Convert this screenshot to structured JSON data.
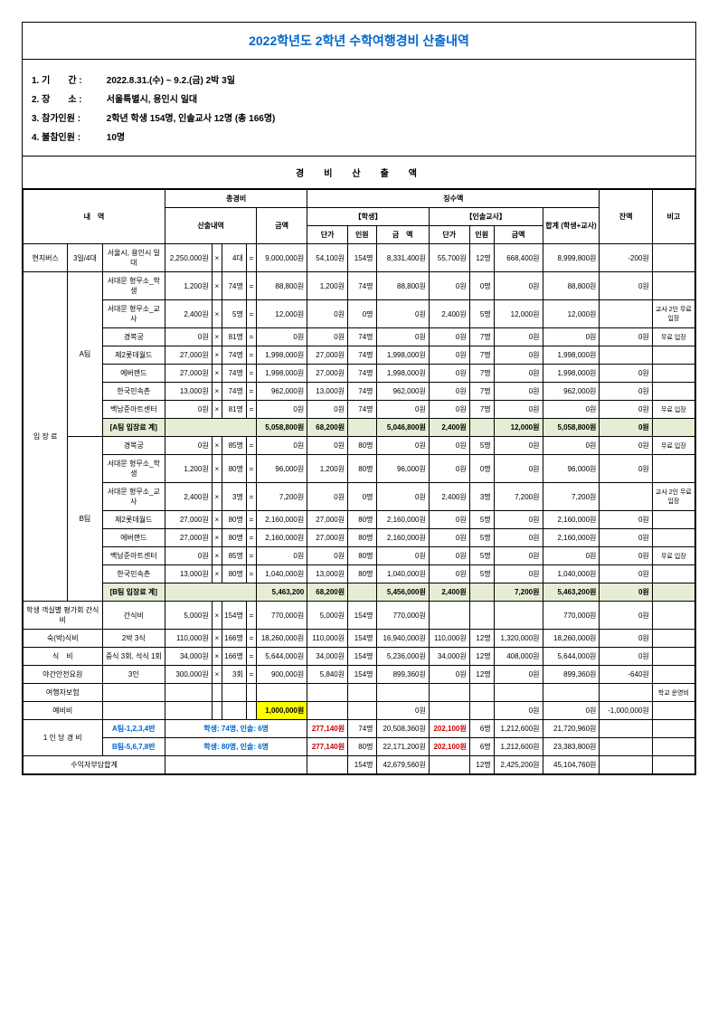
{
  "title": "2022학년도 2학년 수학여행경비 산출내역",
  "info": {
    "period_label": "1. 기　　간 :",
    "period": "2022.8.31.(수) ~ 9.2.(금) 2박 3일",
    "place_label": "2. 장　　소 :",
    "place": "서울특별시, 용인시 일대",
    "participants_label": "3. 참가인원 :",
    "participants": "2학년 학생 154명, 인솔교사 12명 (총 166명)",
    "absent_label": "4. 불참인원 :",
    "absent": "10명"
  },
  "section_heading": "경　비　산　출　액",
  "headers": {
    "item": "내　역",
    "total_cost": "총경비",
    "detail": "산출내역",
    "amount": "금액",
    "collection": "징수액",
    "student": "【학생】",
    "teacher": "【인솔교사】",
    "sum": "합계\n(학생+교사)",
    "unit_price": "단가",
    "count": "인원",
    "money": "금　액",
    "amt2": "금액",
    "balance": "잔액",
    "note": "비고"
  },
  "rows": [
    {
      "c1": "현지버스",
      "c2": "3일/4대",
      "c3": "서울시, 용인시 일대",
      "u": "2,250,000원",
      "x": "×",
      "q": "4대",
      "eq": "=",
      "amt": "9,000,000원",
      "sp": "54,100원",
      "sc": "154명",
      "sa": "8,331,400원",
      "tp": "55,700원",
      "tc": "12명",
      "ta": "668,400원",
      "tot": "8,999,800원",
      "bal": "-200원",
      "note": ""
    },
    {
      "c3": "서대문 형무소_학생",
      "u": "1,200원",
      "x": "×",
      "q": "74명",
      "eq": "=",
      "amt": "88,800원",
      "sp": "1,200원",
      "sc": "74명",
      "sa": "88,800원",
      "tp": "0원",
      "tc": "0명",
      "ta": "0원",
      "tot": "88,800원",
      "bal": "0원",
      "note": ""
    },
    {
      "c3": "서대문 형무소_교사",
      "u": "2,400원",
      "x": "×",
      "q": "5명",
      "eq": "=",
      "amt": "12,000원",
      "sp": "0원",
      "sc": "0명",
      "sa": "0원",
      "tp": "2,400원",
      "tc": "5명",
      "ta": "12,000원",
      "tot": "12,000원",
      "bal": "",
      "note": "교사 2인 무료 입장"
    },
    {
      "c3": "경복궁",
      "u": "0원",
      "x": "×",
      "q": "81명",
      "eq": "=",
      "amt": "0원",
      "sp": "0원",
      "sc": "74명",
      "sa": "0원",
      "tp": "0원",
      "tc": "7명",
      "ta": "0원",
      "tot": "0원",
      "bal": "0원",
      "note": "무료 입장"
    },
    {
      "c3": "제2롯데월드",
      "u": "27,000원",
      "x": "×",
      "q": "74명",
      "eq": "=",
      "amt": "1,998,000원",
      "sp": "27,000원",
      "sc": "74명",
      "sa": "1,998,000원",
      "tp": "0원",
      "tc": "7명",
      "ta": "0원",
      "tot": "1,998,000원",
      "bal": "",
      "note": ""
    },
    {
      "c3": "에버랜드",
      "u": "27,000원",
      "x": "×",
      "q": "74명",
      "eq": "=",
      "amt": "1,998,000원",
      "sp": "27,000원",
      "sc": "74명",
      "sa": "1,998,000원",
      "tp": "0원",
      "tc": "7명",
      "ta": "0원",
      "tot": "1,998,000원",
      "bal": "0원",
      "note": ""
    },
    {
      "c3": "한국민속촌",
      "u": "13,000원",
      "x": "×",
      "q": "74명",
      "eq": "=",
      "amt": "962,000원",
      "sp": "13,000원",
      "sc": "74명",
      "sa": "962,000원",
      "tp": "0원",
      "tc": "7명",
      "ta": "0원",
      "tot": "962,000원",
      "bal": "0원",
      "note": ""
    },
    {
      "c3": "백남준아트센터",
      "u": "0원",
      "x": "×",
      "q": "81명",
      "eq": "=",
      "amt": "0원",
      "sp": "0원",
      "sc": "74명",
      "sa": "0원",
      "tp": "0원",
      "tc": "7명",
      "ta": "0원",
      "tot": "0원",
      "bal": "0원",
      "note": "무료 입장"
    },
    {
      "sub": true,
      "c3": "[A팀 입장료 계]",
      "amt": "5,058,800원",
      "sp": "68,200원",
      "sa": "5,046,800원",
      "tp": "2,400원",
      "ta": "12,000원",
      "tot": "5,058,800원",
      "bal": "0원"
    },
    {
      "c3": "경복궁",
      "u": "0원",
      "x": "×",
      "q": "85명",
      "eq": "=",
      "amt": "0원",
      "sp": "0원",
      "sc": "80명",
      "sa": "0원",
      "tp": "0원",
      "tc": "5명",
      "ta": "0원",
      "tot": "0원",
      "bal": "0원",
      "note": "무료 입장"
    },
    {
      "c3": "서대문 형무소_학생",
      "u": "1,200원",
      "x": "×",
      "q": "80명",
      "eq": "=",
      "amt": "96,000원",
      "sp": "1,200원",
      "sc": "80명",
      "sa": "96,000원",
      "tp": "0원",
      "tc": "0명",
      "ta": "0원",
      "tot": "96,000원",
      "bal": "0원",
      "note": ""
    },
    {
      "c3": "서대문 형무소_교사",
      "u": "2,400원",
      "x": "×",
      "q": "3명",
      "eq": "=",
      "amt": "7,200원",
      "sp": "0원",
      "sc": "0명",
      "sa": "0원",
      "tp": "2,400원",
      "tc": "3명",
      "ta": "7,200원",
      "tot": "7,200원",
      "bal": "",
      "note": "교사 2인 무료 입장"
    },
    {
      "c3": "제2롯데월드",
      "u": "27,000원",
      "x": "×",
      "q": "80명",
      "eq": "=",
      "amt": "2,160,000원",
      "sp": "27,000원",
      "sc": "80명",
      "sa": "2,160,000원",
      "tp": "0원",
      "tc": "5명",
      "ta": "0원",
      "tot": "2,160,000원",
      "bal": "0원",
      "note": ""
    },
    {
      "c3": "에버랜드",
      "u": "27,000원",
      "x": "×",
      "q": "80명",
      "eq": "=",
      "amt": "2,160,000원",
      "sp": "27,000원",
      "sc": "80명",
      "sa": "2,160,000원",
      "tp": "0원",
      "tc": "5명",
      "ta": "0원",
      "tot": "2,160,000원",
      "bal": "0원",
      "note": ""
    },
    {
      "c3": "백남준아트센터",
      "u": "0원",
      "x": "×",
      "q": "85명",
      "eq": "=",
      "amt": "0원",
      "sp": "0원",
      "sc": "80명",
      "sa": "0원",
      "tp": "0원",
      "tc": "5명",
      "ta": "0원",
      "tot": "0원",
      "bal": "0원",
      "note": "무료 입장"
    },
    {
      "c3": "한국민속촌",
      "u": "13,000원",
      "x": "×",
      "q": "80명",
      "eq": "=",
      "amt": "1,040,000원",
      "sp": "13,000원",
      "sc": "80명",
      "sa": "1,040,000원",
      "tp": "0원",
      "tc": "5명",
      "ta": "0원",
      "tot": "1,040,000원",
      "bal": "0원",
      "note": ""
    },
    {
      "sub": true,
      "c3": "[B팀 입장료 계]",
      "amt": "5,463,200",
      "sp": "68,200원",
      "sa": "5,456,000원",
      "tp": "2,400원",
      "ta": "7,200원",
      "tot": "5,463,200원",
      "bal": "0원"
    },
    {
      "c1": "학생 객실별 평가회 간식비",
      "c3": "간식비",
      "u": "5,000원",
      "x": "×",
      "q": "154명",
      "eq": "=",
      "amt": "770,000원",
      "sp": "5,000원",
      "sc": "154명",
      "sa": "770,000원",
      "tp": "",
      "tc": "",
      "ta": "",
      "tot": "770,000원",
      "bal": "0원",
      "note": ""
    },
    {
      "c1": "숙(박)식비",
      "c3": "2박 3식",
      "u": "110,000원",
      "x": "×",
      "q": "166명",
      "eq": "=",
      "amt": "18,260,000원",
      "sp": "110,000원",
      "sc": "154명",
      "sa": "16,940,000원",
      "tp": "110,000원",
      "tc": "12명",
      "ta": "1,320,000원",
      "tot": "18,260,000원",
      "bal": "0원",
      "note": ""
    },
    {
      "c1": "식　비",
      "c3": "중식 3회, 석식 1회",
      "u": "34,000원",
      "x": "×",
      "q": "166명",
      "eq": "=",
      "amt": "5,644,000원",
      "sp": "34,000원",
      "sc": "154명",
      "sa": "5,236,000원",
      "tp": "34,000원",
      "tc": "12명",
      "ta": "408,000원",
      "tot": "5,644,000원",
      "bal": "0원",
      "note": ""
    },
    {
      "c1": "야간안전요원",
      "c3": "3인",
      "u": "300,000원",
      "x": "×",
      "q": "3회",
      "eq": "=",
      "amt": "900,000원",
      "sp": "5,840원",
      "sc": "154명",
      "sa": "899,360원",
      "tp": "0원",
      "tc": "12명",
      "ta": "0원",
      "tot": "899,360원",
      "bal": "-640원",
      "note": ""
    },
    {
      "c1": "여행자보험",
      "c3": "",
      "u": "",
      "x": "",
      "q": "",
      "eq": "",
      "amt": "",
      "sp": "",
      "sc": "",
      "sa": "",
      "tp": "",
      "tc": "",
      "ta": "",
      "tot": "",
      "bal": "",
      "note": "학교 운영비"
    },
    {
      "c1": "예비비",
      "c3": "",
      "u": "",
      "x": "",
      "q": "",
      "eq": "",
      "amt": "1,000,000원",
      "yellow": true,
      "sp": "",
      "sc": "",
      "sa": "0원",
      "tp": "",
      "tc": "",
      "ta": "0원",
      "tot": "0원",
      "bal": "-1,000,000원",
      "note": ""
    }
  ],
  "perperson": {
    "label": "1 인 당  경 비",
    "a_team": "A팀-1,2,3,4반",
    "a_desc": "학생: 74명, 인솔: 6명",
    "b_team": "B팀-5,6,7,8반",
    "b_desc": "학생: 80명, 인솔: 6명",
    "a": {
      "sp": "277,140원",
      "sc": "74명",
      "sa": "20,508,360원",
      "tp": "202,100원",
      "tc": "6명",
      "ta": "1,212,600원",
      "tot": "21,720,960원"
    },
    "b": {
      "sp": "277,140원",
      "sc": "80명",
      "sa": "22,171,200원",
      "tp": "202,100원",
      "tc": "6명",
      "ta": "1,212,600원",
      "tot": "23,383,800원"
    }
  },
  "total": {
    "label": "수익자부담합계",
    "sc": "154명",
    "sa": "42,679,560원",
    "tc": "12명",
    "ta": "2,425,200원",
    "tot": "45,104,760원"
  },
  "group_labels": {
    "admission": "입 장 료",
    "ateam": "A팀",
    "bteam": "B팀"
  }
}
